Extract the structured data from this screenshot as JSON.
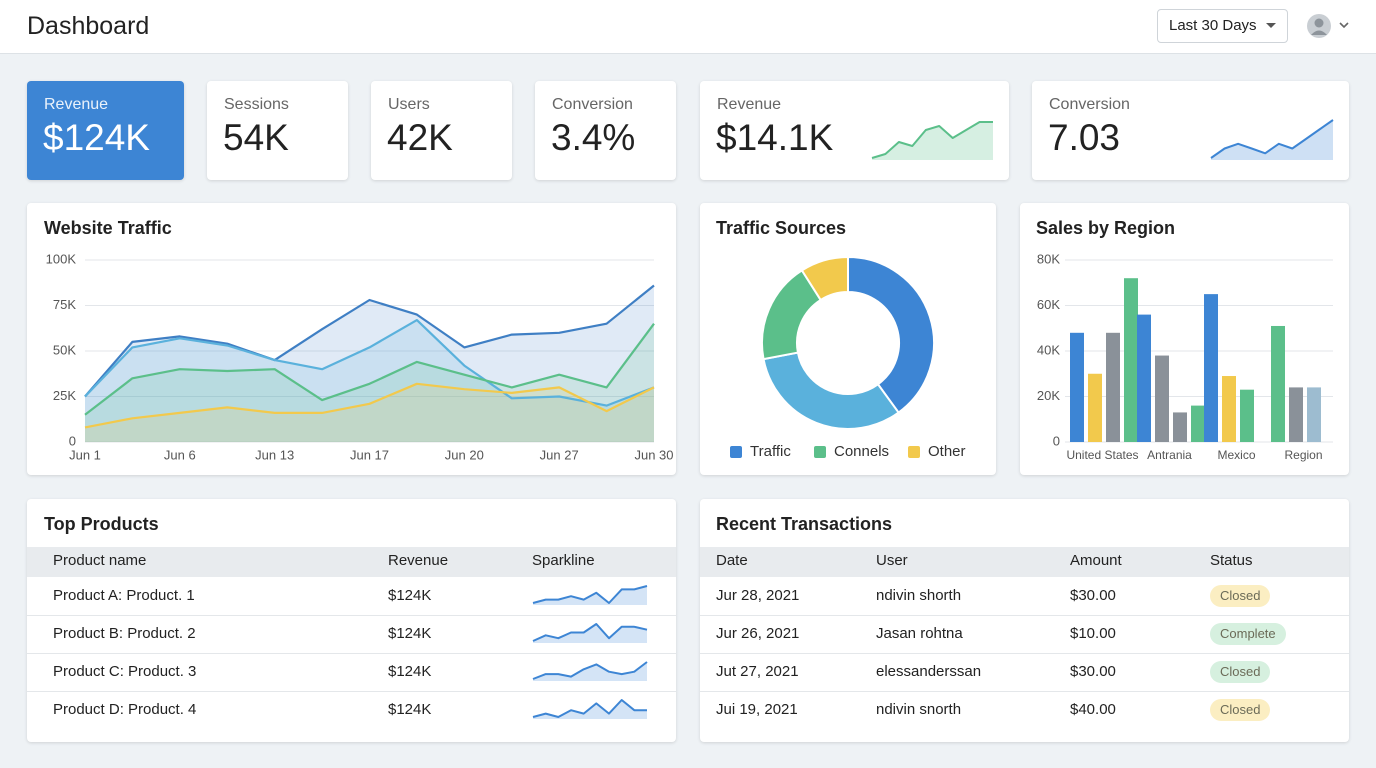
{
  "header": {
    "title": "Dashboard",
    "date_range": "Last 30 Days"
  },
  "kpis": [
    {
      "label": "Revenue",
      "value": "$124K"
    },
    {
      "label": "Sessions",
      "value": "54K"
    },
    {
      "label": "Users",
      "value": "42K"
    },
    {
      "label": "Conversion",
      "value": "3.4%"
    },
    {
      "label": "Revenue",
      "value": "$14.1K",
      "sparkline": [
        2,
        3,
        6,
        5,
        9,
        10,
        7,
        9,
        11,
        11
      ],
      "sparkline_color": "#5bbf8a"
    },
    {
      "label": "Conversion",
      "value": "7.03",
      "sparkline": [
        2,
        4,
        5,
        4,
        3,
        5,
        4,
        6,
        8,
        10
      ],
      "sparkline_color": "#3d85d4"
    }
  ],
  "chart_data": [
    {
      "type": "line",
      "title": "Website Traffic",
      "categories": [
        "Jun 1",
        null,
        "Jun 6",
        null,
        "Jun 13",
        null,
        "Jun 17",
        null,
        "Jun 20",
        null,
        "Jun 27",
        null,
        "Jun 30"
      ],
      "series": [
        {
          "color": "#3f7fc4",
          "values": [
            25000,
            55000,
            58000,
            54000,
            45000,
            62000,
            78000,
            70000,
            52000,
            59000,
            60000,
            65000,
            86000
          ]
        },
        {
          "color": "#5ab1dc",
          "values": [
            25000,
            52000,
            57000,
            53000,
            45000,
            40000,
            52000,
            67000,
            42000,
            24000,
            25000,
            20000,
            30000
          ]
        },
        {
          "color": "#5bbf8a",
          "values": [
            15000,
            35000,
            40000,
            39000,
            40000,
            23000,
            32000,
            44000,
            37000,
            30000,
            37000,
            30000,
            65000
          ]
        },
        {
          "color": "#f2c94c",
          "values": [
            8000,
            13000,
            16000,
            19000,
            16000,
            16000,
            21000,
            32000,
            29000,
            27000,
            30000,
            17000,
            30000
          ]
        }
      ],
      "ylim": [
        0,
        100000
      ],
      "yticks": [
        0,
        {
          "value": 25000,
          "label": "25K"
        },
        {
          "value": 50000,
          "label": "50K"
        },
        {
          "value": 75000,
          "label": "75K"
        },
        {
          "value": 100000,
          "label": "100K"
        }
      ],
      "grid": true,
      "area": true
    },
    {
      "type": "donut",
      "title": "Traffic Sources",
      "categories": [
        "Traffic",
        null,
        "Connels",
        "Other"
      ],
      "values": [
        40,
        32,
        19,
        9
      ],
      "colors": [
        "#3d85d4",
        "#5ab1dc",
        "#5bbf8a",
        "#f2c94c"
      ]
    },
    {
      "type": "bar",
      "title": "Sales by Region",
      "categories": [
        "United States",
        "Antrania",
        "Mexico",
        "Region"
      ],
      "series": [
        {
          "colors": [
            "#3d85d4",
            "#3d85d4",
            "#3d85d4",
            "#5bbf8a"
          ],
          "values": [
            48000,
            56000,
            65000,
            51000
          ]
        },
        {
          "colors": [
            "#f2c94c",
            "#8a9199",
            "#f2c94c",
            "#8a9199"
          ],
          "values": [
            30000,
            38000,
            29000,
            24000
          ]
        },
        {
          "colors": [
            "#8a9199",
            "#8a9199",
            "#5bbf8a",
            "#9dbcd0"
          ],
          "values": [
            48000,
            13000,
            23000,
            24000
          ]
        },
        {
          "colors": [
            "#5bbf8a",
            "#5bbf8a",
            null,
            null
          ],
          "values": [
            72000,
            16000,
            null,
            null
          ]
        }
      ],
      "ylim": [
        0,
        80000
      ],
      "yticks": [
        0,
        {
          "value": 20000,
          "label": "20K"
        },
        {
          "value": 40000,
          "label": "40K"
        },
        {
          "value": 60000,
          "label": "60K"
        },
        {
          "value": 80000,
          "label": "80K"
        }
      ],
      "grid": true
    }
  ],
  "top_products": {
    "title": "Top Products",
    "columns": [
      "Product name",
      "Revenue",
      "Sparkline"
    ],
    "sparkline_color": "#3d85d4",
    "rows": [
      {
        "name": "Product A: Product. 1",
        "revenue": "$124K",
        "sparkline": [
          2,
          3,
          3,
          4,
          3,
          5,
          2,
          6,
          6,
          7
        ]
      },
      {
        "name": "Product B: Product. 2",
        "revenue": "$124K",
        "sparkline": [
          2,
          4,
          3,
          5,
          5,
          8,
          3,
          7,
          7,
          6
        ]
      },
      {
        "name": "Product C: Product. 3",
        "revenue": "$124K",
        "sparkline": [
          2,
          4,
          4,
          3,
          6,
          8,
          5,
          4,
          5,
          9
        ]
      },
      {
        "name": "Product D: Product. 4",
        "revenue": "$124K",
        "sparkline": [
          2,
          3,
          2,
          4,
          3,
          6,
          3,
          7,
          4,
          4
        ]
      }
    ]
  },
  "recent_transactions": {
    "title": "Recent Transactions",
    "columns": [
      "Date",
      "User",
      "Amount",
      "Status"
    ],
    "rows": [
      {
        "date": "Jur 28, 2021",
        "user": "ndivin shorth",
        "amount": "$30.00",
        "status": "Closed",
        "status_color": "#fbeec2"
      },
      {
        "date": "Jur 26, 2021",
        "user": "Jasan rohtna",
        "amount": "$10.00",
        "status": "Complete",
        "status_color": "#d6f0df"
      },
      {
        "date": "Jut 27, 2021",
        "user": "elessanderssan",
        "amount": "$30.00",
        "status": "Closed",
        "status_color": "#d6f0df"
      },
      {
        "date": "Jui 19, 2021",
        "user": "ndivin snorth",
        "amount": "$40.00",
        "status": "Closed",
        "status_color": "#fbeec2"
      }
    ]
  }
}
